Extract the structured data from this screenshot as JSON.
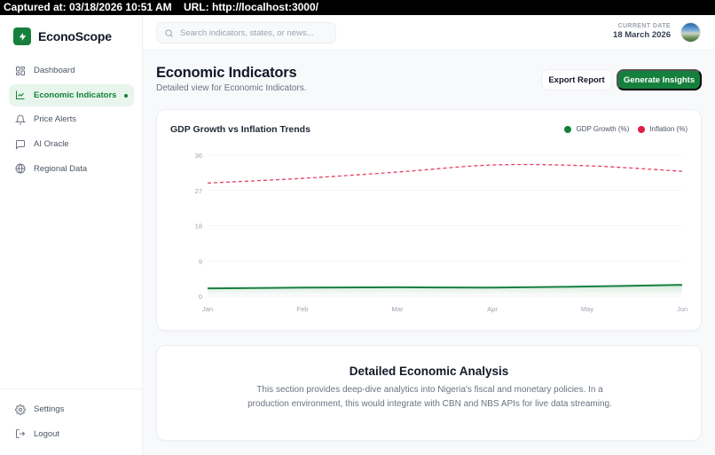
{
  "capture": {
    "text": "Captured at: 03/18/2026 10:51 AM    URL: http://localhost:3000/"
  },
  "brand": {
    "name": "EconoScope",
    "logo_icon": "lightning-bolt-icon",
    "color": "#15803d"
  },
  "sidebar": {
    "items": [
      {
        "label": "Dashboard",
        "icon": "grid-icon",
        "active": false
      },
      {
        "label": "Economic Indicators",
        "icon": "line-chart-icon",
        "active": true
      },
      {
        "label": "Price Alerts",
        "icon": "bell-icon",
        "active": false
      },
      {
        "label": "AI Oracle",
        "icon": "chat-icon",
        "active": false
      },
      {
        "label": "Regional Data",
        "icon": "globe-icon",
        "active": false
      }
    ],
    "bottom_items": [
      {
        "label": "Settings",
        "icon": "gear-icon"
      },
      {
        "label": "Logout",
        "icon": "logout-icon"
      }
    ]
  },
  "topbar": {
    "search_placeholder": "Search indicators, states, or news...",
    "search_value": "",
    "date_label": "CURRENT DATE",
    "date_value": "18 March 2026"
  },
  "page": {
    "title": "Economic Indicators",
    "subtitle": "Detailed view for Economic Indicators.",
    "export_label": "Export Report",
    "insights_label": "Generate Insights"
  },
  "chart_data": {
    "type": "line",
    "title": "GDP Growth vs Inflation Trends",
    "categories": [
      "Jan",
      "Feb",
      "Mar",
      "Apr",
      "May",
      "Jun"
    ],
    "series": [
      {
        "name": "GDP Growth (%)",
        "color": "#15803d",
        "style": "solid",
        "values": [
          2.0,
          2.2,
          2.3,
          2.2,
          2.5,
          2.9
        ]
      },
      {
        "name": "Inflation (%)",
        "color": "#e11d48",
        "style": "dashed",
        "values": [
          28.9,
          30.1,
          31.7,
          33.5,
          33.3,
          31.9
        ]
      }
    ],
    "yticks": [
      0,
      9,
      18,
      27,
      36
    ],
    "ylim": [
      0,
      36
    ],
    "xlabel": "",
    "ylabel": "",
    "grid": true,
    "legend_position": "top-right"
  },
  "analysis": {
    "title": "Detailed Economic Analysis",
    "text": "This section provides deep-dive analytics into Nigeria's fiscal and monetary policies. In a production environment, this would integrate with CBN and NBS APIs for live data streaming."
  }
}
